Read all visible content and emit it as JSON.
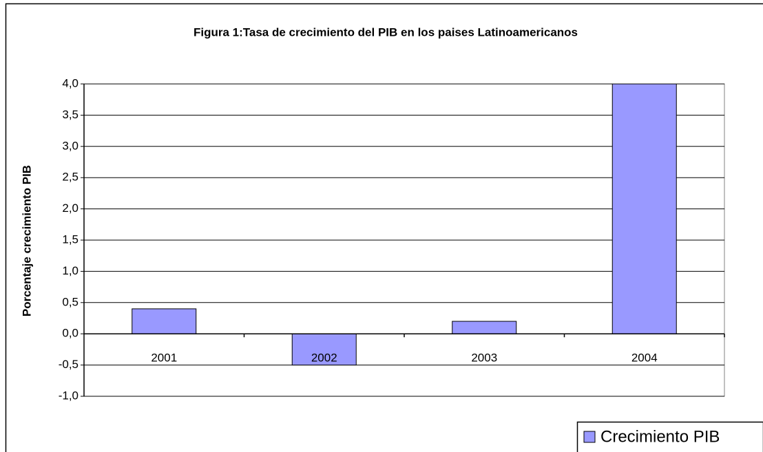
{
  "chart_data": {
    "type": "bar",
    "title": "Figura 1:Tasa de crecimiento del PIB en los paises Latinoamericanos",
    "y_label": "Porcentaje crecimiento PIB",
    "categories": [
      "2001",
      "2002",
      "2003",
      "2004"
    ],
    "series": [
      {
        "name": "Crecimiento PIB",
        "color": "#9999ff",
        "values": [
          0.4,
          -0.5,
          0.2,
          4.0
        ]
      }
    ],
    "ylim": [
      -1,
      4
    ],
    "yticks": [
      {
        "value": -1,
        "label": "-1,0"
      },
      {
        "value": -0.5,
        "label": "-0,5"
      },
      {
        "value": 0,
        "label": "0,0"
      },
      {
        "value": 0.5,
        "label": "0,5"
      },
      {
        "value": 1,
        "label": "1,0"
      },
      {
        "value": 1.5,
        "label": "1,5"
      },
      {
        "value": 2,
        "label": "2,0"
      },
      {
        "value": 2.5,
        "label": "2,5"
      },
      {
        "value": 3,
        "label": "3,0"
      },
      {
        "value": 3.5,
        "label": "3,5"
      },
      {
        "value": 4,
        "label": "4,0"
      }
    ],
    "grid": true,
    "legend": "bottom-right"
  }
}
